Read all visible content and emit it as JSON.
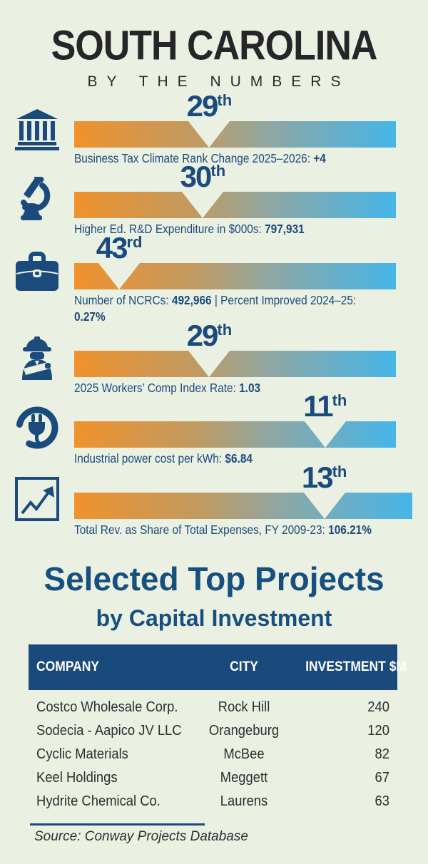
{
  "header": {
    "title": "SOUTH CAROLINA",
    "subtitle": "BY THE NUMBERS"
  },
  "colors": {
    "background": "#eaf0e2",
    "navy": "#1b4b7d",
    "orange": "#f0922c",
    "blue": "#45b6e9",
    "table_header_bg": "#1a4a7b",
    "title_text": "#26262a",
    "body_text": "#2e2e30"
  },
  "rank_scale_max": 50,
  "stats": [
    {
      "icon": "government-building-icon",
      "rank": 29,
      "rank_display": "29",
      "suffix": "th",
      "caption_parts": [
        {
          "t": "Business Tax Climate Rank Change 2025–2026: ",
          "b": false
        },
        {
          "t": "+4",
          "b": true
        }
      ]
    },
    {
      "icon": "microscope-icon",
      "rank": 30,
      "rank_display": "30",
      "suffix": "th",
      "caption_parts": [
        {
          "t": "Higher Ed. R&D Expenditure in $000s: ",
          "b": false
        },
        {
          "t": "797,931",
          "b": true
        }
      ]
    },
    {
      "icon": "briefcase-icon",
      "rank": 43,
      "rank_display": "43",
      "suffix": "rd",
      "caption_parts": [
        {
          "t": "Number of NCRCs: ",
          "b": false
        },
        {
          "t": "492,966",
          "b": true
        },
        {
          "t": " | Percent Improved 2024–25:",
          "b": false
        },
        {
          "br": true
        },
        {
          "t": "0.27%",
          "b": true
        }
      ]
    },
    {
      "icon": "worker-hardhat-icon",
      "rank": 29,
      "rank_display": "29",
      "suffix": "th",
      "caption_parts": [
        {
          "t": "2025 Workers’ Comp Index Rate: ",
          "b": false
        },
        {
          "t": "1.03",
          "b": true
        }
      ]
    },
    {
      "icon": "power-plug-icon",
      "rank": 11,
      "rank_display": "11",
      "suffix": "th",
      "caption_parts": [
        {
          "t": "Industrial power cost per kWh: ",
          "b": false
        },
        {
          "t": "$6.84",
          "b": true
        }
      ]
    },
    {
      "icon": "growth-chart-icon",
      "rank": 13,
      "rank_display": "13",
      "suffix": "th",
      "caption_parts": [
        {
          "t": "Total Rev. as Share of Total Expenses, FY 2009-23: ",
          "b": false
        },
        {
          "t": "106.21%",
          "b": true
        }
      ]
    }
  ],
  "projects": {
    "title": "Selected Top Projects",
    "subtitle": "by Capital Investment",
    "columns": [
      "COMPANY",
      "CITY",
      "INVESTMENT $M"
    ],
    "rows": [
      [
        "Costco Wholesale Corp.",
        "Rock Hill",
        "240"
      ],
      [
        "Sodecia - Aapico JV LLC",
        "Orangeburg",
        "120"
      ],
      [
        "Cyclic Materials",
        "McBee",
        "82"
      ],
      [
        "Keel Holdings",
        "Meggett",
        "67"
      ],
      [
        "Hydrite Chemical Co.",
        "Laurens",
        "63"
      ]
    ],
    "source": "Source: Conway Projects Database"
  },
  "chart_data": [
    {
      "type": "bar",
      "title": "SOUTH CAROLINA BY THE NUMBERS",
      "categories": [
        "Business Tax Climate Rank Change 2025–2026",
        "Higher Ed. R&D Expenditure in $000s",
        "Number of NCRCs / Percent Improved 2024–25",
        "2025 Workers’ Comp Index Rate",
        "Industrial power cost per kWh",
        "Total Rev. as Share of Total Expenses, FY 2009-23"
      ],
      "values": [
        29,
        30,
        43,
        29,
        11,
        13
      ],
      "value_labels": [
        "29th",
        "30th",
        "43rd",
        "29th",
        "11th",
        "13th"
      ],
      "data_labels": [
        "+4",
        "797,931",
        "492,966 / 0.27%",
        "1.03",
        "$6.84",
        "106.21%"
      ],
      "xlabel": "state rank (1–50), marker position = (50 − rank)/50 of bar width, best ranks toward right/blue",
      "ylabel": "",
      "xlim": [
        50,
        1
      ],
      "legend": "off",
      "grid": "off"
    },
    {
      "type": "table",
      "title": "Selected Top Projects by Capital Investment",
      "columns": [
        "COMPANY",
        "CITY",
        "INVESTMENT $M"
      ],
      "rows": [
        [
          "Costco Wholesale Corp.",
          "Rock Hill",
          240
        ],
        [
          "Sodecia - Aapico JV LLC",
          "Orangeburg",
          120
        ],
        [
          "Cyclic Materials",
          "McBee",
          82
        ],
        [
          "Keel Holdings",
          "Meggett",
          67
        ],
        [
          "Hydrite Chemical Co.",
          "Laurens",
          63
        ]
      ],
      "source": "Source: Conway Projects Database"
    }
  ]
}
